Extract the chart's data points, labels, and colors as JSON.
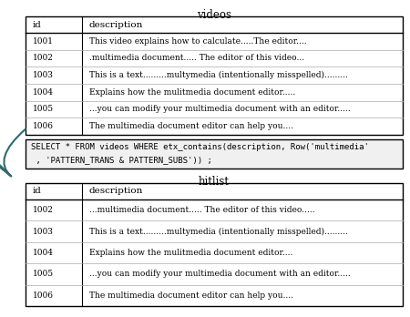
{
  "title_videos": "videos",
  "title_hitlist": "hitlist",
  "sql_line1": "SELECT * FROM videos WHERE etx_contains(description, Row('multimedia'",
  "sql_line2": " , 'PATTERN_TRANS & PATTERN_SUBS')) ;",
  "videos_headers": [
    "id",
    "description"
  ],
  "videos_rows": [
    [
      "1001",
      "This video explains how to calculate.....The editor...."
    ],
    [
      "1002",
      ".multimedia document..... The editor of this video..."
    ],
    [
      "1003",
      "This is a text.........multymedia (intentionally misspelled)........."
    ],
    [
      "1004",
      "Explains how the mulitmedia document editor....."
    ],
    [
      "1005",
      "...you can modify your multimedia document with an editor....."
    ],
    [
      "1006",
      "The multimedia document editor can help you...."
    ]
  ],
  "hitlist_headers": [
    "id",
    "description"
  ],
  "hitlist_rows": [
    [
      "1002",
      "...multimedia document..... The editor of this video....."
    ],
    [
      "1003",
      "This is a text.........multymedia (intentionally misspelled)........."
    ],
    [
      "1004",
      "Explains how the mulitmedia document editor...."
    ],
    [
      "1005",
      "...you can modify your multimedia document with an editor....."
    ],
    [
      "1006",
      "The multimedia document editor can help you...."
    ]
  ],
  "bg_color": "#ffffff",
  "border_color": "#000000",
  "header_line_color": "#000000",
  "row_line_color": "#aaaaaa",
  "text_color": "#000000",
  "sql_bg_color": "#f0f0f0",
  "arrow_color": "#2e6b6b",
  "font_size": 6.5,
  "header_font_size": 7.5,
  "title_font_size": 8.5
}
